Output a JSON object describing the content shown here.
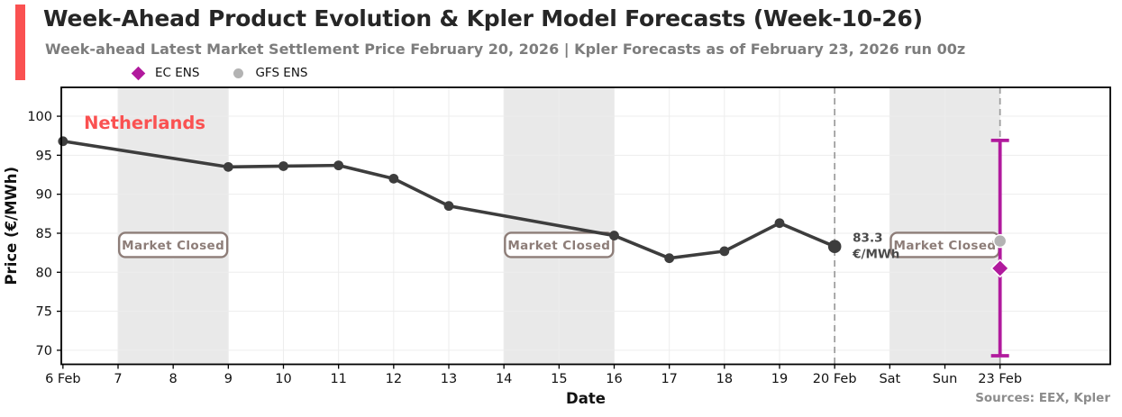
{
  "header": {
    "title": "Week-Ahead Product Evolution & Kpler Model Forecasts (Week-10-26)",
    "subtitle": "Week-ahead Latest Market Settlement Price February 20, 2026 | Kpler Forecasts as of February 23, 2026 run 00z",
    "accent_color": "#fa5151"
  },
  "legend": [
    {
      "label": "EC ENS",
      "marker": "diamond",
      "color": "#b11a9d"
    },
    {
      "label": "GFS ENS",
      "marker": "circle",
      "color": "#b3b3b3"
    }
  ],
  "footer": {
    "sources": "Sources: EEX, Kpler"
  },
  "chart_data": {
    "type": "line",
    "region_label": "Netherlands",
    "region_label_color": "#fa5151",
    "xlabel": "Date",
    "ylabel": "Price (€/MWh)",
    "xlim": [
      5.97,
      25.0
    ],
    "ylim": [
      68.2,
      103.7
    ],
    "grid": true,
    "yticks": [
      70,
      75,
      80,
      85,
      90,
      95,
      100
    ],
    "xticks": [
      {
        "day": 6,
        "label": "6 Feb"
      },
      {
        "day": 7,
        "label": "7"
      },
      {
        "day": 8,
        "label": "8"
      },
      {
        "day": 9,
        "label": "9"
      },
      {
        "day": 10,
        "label": "10"
      },
      {
        "day": 11,
        "label": "11"
      },
      {
        "day": 12,
        "label": "12"
      },
      {
        "day": 13,
        "label": "13"
      },
      {
        "day": 14,
        "label": "14"
      },
      {
        "day": 15,
        "label": "15"
      },
      {
        "day": 16,
        "label": "16"
      },
      {
        "day": 17,
        "label": "17"
      },
      {
        "day": 18,
        "label": "18"
      },
      {
        "day": 19,
        "label": "19"
      },
      {
        "day": 20,
        "label": "20 Feb"
      },
      {
        "day": 21,
        "label": "Sat"
      },
      {
        "day": 22,
        "label": "Sun"
      },
      {
        "day": 23,
        "label": "23 Feb"
      }
    ],
    "settlement_series": {
      "name": "Week-ahead settlement price",
      "color": "#3d3d3d",
      "points": [
        {
          "x": 6,
          "y": 96.8
        },
        {
          "x": 9,
          "y": 93.5
        },
        {
          "x": 10,
          "y": 93.6
        },
        {
          "x": 11,
          "y": 93.7
        },
        {
          "x": 12,
          "y": 92.0
        },
        {
          "x": 13,
          "y": 88.5
        },
        {
          "x": 16,
          "y": 84.7
        },
        {
          "x": 17,
          "y": 81.8
        },
        {
          "x": 18,
          "y": 82.7
        },
        {
          "x": 19,
          "y": 86.3
        },
        {
          "x": 20,
          "y": 83.3
        }
      ]
    },
    "last_settlement": {
      "day": 20,
      "value": 83.3,
      "annotation_lines": [
        "83.3",
        "€/MWh"
      ]
    },
    "forecasts": {
      "day": 23,
      "ec_ens": {
        "label": "EC ENS",
        "value": 80.5,
        "color": "#b11a9d",
        "marker": "diamond"
      },
      "gfs_ens": {
        "label": "GFS ENS",
        "value": 84.0,
        "color": "#b3b3b3",
        "marker": "circle"
      },
      "range": [
        69.3,
        96.9
      ],
      "range_color": "#b11a9d"
    },
    "dashed_vlines": [
      20,
      23
    ],
    "market_closed": {
      "label": "Market Closed",
      "regions": [
        [
          7,
          9
        ],
        [
          14,
          16
        ],
        [
          21,
          23
        ]
      ],
      "label_centers": [
        8,
        15,
        22
      ],
      "label_value": 83.5,
      "region_fill": "#e9e9e9",
      "box_color": "#8d7d78"
    }
  }
}
